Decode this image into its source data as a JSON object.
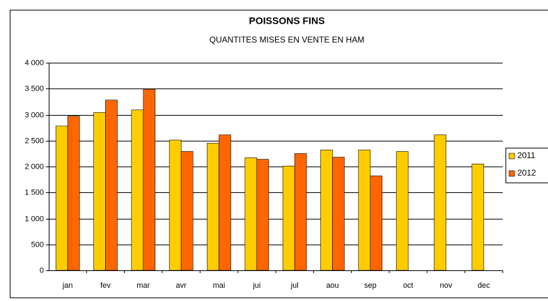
{
  "chart_data": {
    "type": "bar",
    "title": "POISSONS FINS",
    "subtitle": "QUANTITES MISES EN VENTE EN HAM",
    "categories": [
      "jan",
      "fev",
      "mar",
      "avr",
      "mai",
      "jui",
      "jul",
      "aou",
      "sep",
      "oct",
      "nov",
      "dec"
    ],
    "series": [
      {
        "name": "2011",
        "color": "#ffcc00",
        "values": [
          2780,
          3040,
          3090,
          2510,
          2450,
          2170,
          2010,
          2320,
          2320,
          2290,
          2610,
          2050
        ]
      },
      {
        "name": "2012",
        "color": "#ff6600",
        "values": [
          2970,
          3280,
          3490,
          2290,
          2610,
          2140,
          2250,
          2180,
          1820,
          null,
          null,
          null
        ]
      }
    ],
    "ylim": [
      0,
      4000
    ],
    "yticks": [
      0,
      500,
      {
        "value": 1000,
        "label": "1 000"
      },
      {
        "value": 1500,
        "label": "1 500"
      },
      {
        "value": 2000,
        "label": "2 000"
      },
      {
        "value": 2500,
        "label": "2 500"
      },
      {
        "value": 3000,
        "label": "3 000"
      },
      {
        "value": 3500,
        "label": "3 500"
      },
      {
        "value": 4000,
        "label": "4 000"
      }
    ],
    "grid": true,
    "legend": "right"
  }
}
